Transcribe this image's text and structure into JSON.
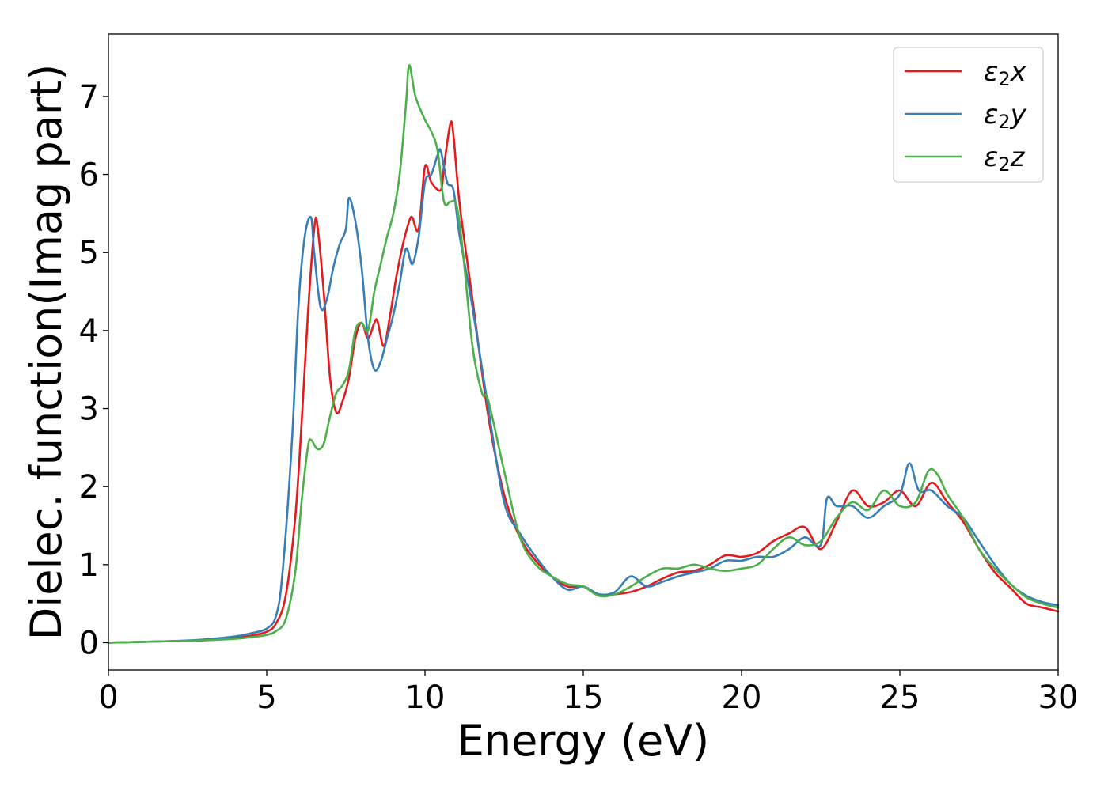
{
  "chart_data": {
    "type": "line",
    "xlabel": "Energy (eV)",
    "ylabel": "Dielec. function(Imag part)",
    "xlim": [
      0,
      30
    ],
    "ylim": [
      -0.35,
      7.8
    ],
    "xticks": [
      "0",
      "5",
      "10",
      "15",
      "20",
      "25",
      "30"
    ],
    "yticks": [
      "0",
      "1",
      "2",
      "3",
      "4",
      "5",
      "6",
      "7"
    ],
    "grid": false,
    "legend": "top-right",
    "series": [
      {
        "name": "ε2x",
        "legend_base": "ε",
        "legend_sub": "2",
        "legend_var": "x",
        "color": "#e41a1c",
        "x": [
          0,
          1,
          2,
          3,
          4,
          4.5,
          5,
          5.3,
          5.6,
          5.9,
          6.1,
          6.3,
          6.5,
          6.6,
          6.8,
          7.0,
          7.2,
          7.4,
          7.6,
          7.8,
          8.0,
          8.2,
          8.4,
          8.5,
          8.7,
          8.9,
          9.1,
          9.3,
          9.5,
          9.6,
          9.8,
          10.0,
          10.2,
          10.5,
          10.6,
          10.8,
          10.9,
          11.1,
          11.5,
          12.0,
          12.5,
          13.0,
          13.5,
          14.0,
          14.5,
          15.0,
          15.5,
          16.0,
          16.5,
          17.0,
          17.5,
          18.0,
          18.5,
          19.0,
          19.5,
          20.0,
          20.5,
          21.0,
          21.5,
          22.0,
          22.5,
          23.0,
          23.5,
          24.0,
          24.5,
          25.0,
          25.5,
          26.0,
          26.5,
          27.0,
          27.5,
          28.0,
          28.5,
          29.0,
          29.5,
          30.0
        ],
        "values": [
          0,
          0.01,
          0.02,
          0.03,
          0.06,
          0.09,
          0.14,
          0.25,
          0.6,
          1.6,
          2.8,
          4.2,
          5.3,
          5.35,
          4.5,
          3.4,
          2.95,
          3.1,
          3.4,
          3.9,
          4.1,
          3.9,
          4.1,
          4.12,
          3.8,
          4.2,
          4.7,
          5.1,
          5.4,
          5.45,
          5.3,
          6.1,
          5.9,
          5.8,
          6.1,
          6.65,
          6.5,
          5.6,
          4.4,
          2.9,
          1.9,
          1.35,
          1.05,
          0.85,
          0.72,
          0.72,
          0.6,
          0.62,
          0.65,
          0.72,
          0.82,
          0.9,
          0.92,
          1.0,
          1.12,
          1.1,
          1.15,
          1.3,
          1.4,
          1.48,
          1.2,
          1.55,
          1.95,
          1.75,
          1.8,
          1.95,
          1.75,
          2.05,
          1.8,
          1.55,
          1.2,
          0.9,
          0.7,
          0.5,
          0.45,
          0.4
        ]
      },
      {
        "name": "ε2y",
        "legend_base": "ε",
        "legend_sub": "2",
        "legend_var": "y",
        "color": "#377eb8",
        "x": [
          0,
          1,
          2,
          3,
          4,
          4.5,
          5,
          5.3,
          5.5,
          5.8,
          6.0,
          6.2,
          6.4,
          6.5,
          6.7,
          6.9,
          7.1,
          7.3,
          7.5,
          7.6,
          7.8,
          8.0,
          8.2,
          8.4,
          8.6,
          8.8,
          9.0,
          9.2,
          9.4,
          9.6,
          9.8,
          10.0,
          10.2,
          10.4,
          10.5,
          10.7,
          10.9,
          11.1,
          11.5,
          12.0,
          12.5,
          13.0,
          13.5,
          14.0,
          14.5,
          15.0,
          15.5,
          16.0,
          16.5,
          17.0,
          17.5,
          18.0,
          18.5,
          19.0,
          19.5,
          20.0,
          20.5,
          21.0,
          21.5,
          22.0,
          22.5,
          22.7,
          23.0,
          23.5,
          24.0,
          24.5,
          25.0,
          25.3,
          25.6,
          26.0,
          26.5,
          27.0,
          27.5,
          28.0,
          28.5,
          29.0,
          29.5,
          30.0
        ],
        "values": [
          0,
          0.01,
          0.02,
          0.04,
          0.08,
          0.12,
          0.18,
          0.35,
          0.9,
          2.6,
          4.3,
          5.2,
          5.45,
          5.0,
          4.3,
          4.4,
          4.8,
          5.1,
          5.3,
          5.7,
          5.4,
          4.8,
          3.9,
          3.5,
          3.6,
          3.9,
          4.2,
          4.6,
          5.05,
          4.85,
          5.2,
          5.9,
          6.0,
          6.25,
          6.3,
          5.9,
          5.8,
          5.2,
          4.3,
          3.0,
          1.8,
          1.4,
          1.1,
          0.85,
          0.68,
          0.72,
          0.62,
          0.65,
          0.85,
          0.72,
          0.78,
          0.85,
          0.9,
          0.95,
          1.05,
          1.05,
          1.1,
          1.1,
          1.2,
          1.35,
          1.25,
          1.85,
          1.75,
          1.75,
          1.6,
          1.75,
          1.9,
          2.3,
          1.95,
          1.95,
          1.75,
          1.6,
          1.3,
          1.0,
          0.75,
          0.6,
          0.52,
          0.48
        ]
      },
      {
        "name": "ε2z",
        "legend_base": "ε",
        "legend_sub": "2",
        "legend_var": "z",
        "color": "#4daf4a",
        "x": [
          0,
          1,
          2,
          3,
          4,
          4.5,
          5,
          5.3,
          5.6,
          5.9,
          6.1,
          6.3,
          6.4,
          6.6,
          6.8,
          7.0,
          7.2,
          7.4,
          7.6,
          7.8,
          8.0,
          8.2,
          8.4,
          8.6,
          8.8,
          9.0,
          9.2,
          9.4,
          9.5,
          9.7,
          10.0,
          10.2,
          10.4,
          10.6,
          10.8,
          11.0,
          11.2,
          11.5,
          11.8,
          12.0,
          12.5,
          13.0,
          13.5,
          14.0,
          14.5,
          15.0,
          15.5,
          16.0,
          16.5,
          17.0,
          17.5,
          18.0,
          18.5,
          19.0,
          19.5,
          20.0,
          20.5,
          21.0,
          21.5,
          22.0,
          22.5,
          23.0,
          23.5,
          24.0,
          24.5,
          25.0,
          25.5,
          25.9,
          26.2,
          26.5,
          27.0,
          27.5,
          28.0,
          28.5,
          29.0,
          29.5,
          30.0
        ],
        "values": [
          0,
          0.01,
          0.02,
          0.03,
          0.05,
          0.07,
          0.1,
          0.15,
          0.3,
          0.9,
          1.8,
          2.5,
          2.6,
          2.48,
          2.55,
          2.9,
          3.2,
          3.3,
          3.5,
          4.0,
          4.1,
          4.0,
          4.5,
          4.85,
          5.2,
          5.5,
          6.0,
          6.9,
          7.4,
          7.0,
          6.7,
          6.55,
          6.3,
          5.65,
          5.65,
          5.6,
          5.0,
          3.8,
          3.2,
          3.1,
          2.2,
          1.35,
          1.0,
          0.85,
          0.75,
          0.72,
          0.6,
          0.62,
          0.72,
          0.85,
          0.95,
          0.95,
          1.0,
          0.95,
          0.92,
          0.95,
          1.0,
          1.2,
          1.35,
          1.25,
          1.3,
          1.6,
          1.8,
          1.7,
          1.95,
          1.75,
          1.8,
          2.2,
          2.15,
          1.9,
          1.6,
          1.2,
          0.95,
          0.75,
          0.58,
          0.5,
          0.45
        ]
      }
    ]
  }
}
